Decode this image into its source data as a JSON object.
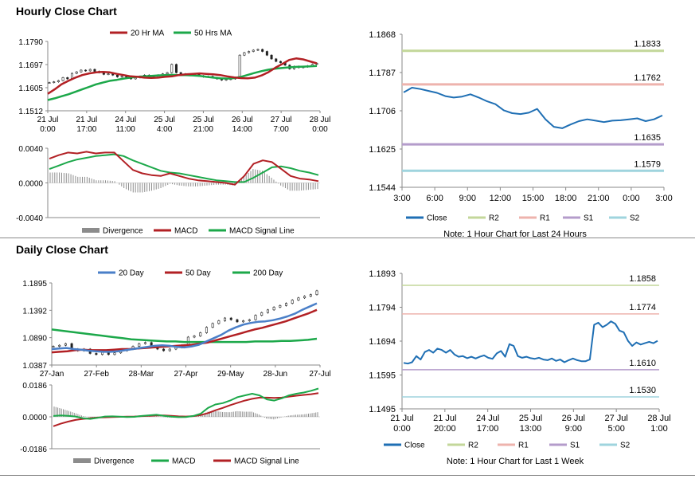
{
  "sections": {
    "hourly_title": "Hourly Close Chart",
    "daily_title": "Daily Close Chart"
  },
  "colors": {
    "red": "#b22024",
    "green": "#1ca84a",
    "blue": "#4a7fc8",
    "close_blue": "#1f6fb4",
    "gray": "#8c8c8c",
    "r2": "#c3d79a",
    "r1": "#eeb3ad",
    "s1": "#b49ccb",
    "s2": "#9fd4de"
  },
  "chart_data": [
    {
      "id": "hourly_price",
      "type": "line",
      "subtype": "candlestick-with-moving-averages",
      "title": "",
      "legend": [
        "20 Hr MA",
        "50 Hrs MA"
      ],
      "x_ticks": [
        [
          "21 Jul",
          "0:00"
        ],
        [
          "21 Jul",
          "17:00"
        ],
        [
          "24 Jul",
          "11:00"
        ],
        [
          "25 Jul",
          "4:00"
        ],
        [
          "25 Jul",
          "21:00"
        ],
        [
          "26 Jul",
          "14:00"
        ],
        [
          "27 Jul",
          "7:00"
        ],
        [
          "28 Jul",
          "0:00"
        ]
      ],
      "y_ticks": [
        "1.1790",
        "1.1697",
        "1.1605",
        "1.1512"
      ],
      "ylim": [
        1.1512,
        1.179
      ],
      "series": [
        {
          "name": "Price",
          "values": [
            1.1625,
            1.1628,
            1.1633,
            1.1645,
            1.164,
            1.1662,
            1.1668,
            1.1675,
            1.1672,
            1.1678,
            1.167,
            1.1665,
            1.1658,
            1.166,
            1.1655,
            1.1648,
            1.165,
            1.1645,
            1.164,
            1.1645,
            1.165,
            1.1655,
            1.1648,
            1.1645,
            1.1655,
            1.166,
            1.1665,
            1.1698,
            1.1665,
            1.166,
            1.1655,
            1.1655,
            1.1658,
            1.1652,
            1.1648,
            1.165,
            1.1645,
            1.164,
            1.1635,
            1.1638,
            1.164,
            1.1645,
            1.1735,
            1.1745,
            1.175,
            1.1755,
            1.1758,
            1.175,
            1.1735,
            1.172,
            1.171,
            1.1705,
            1.1695,
            1.168,
            1.169,
            1.1685,
            1.1688,
            1.1692,
            1.1698,
            1.1702
          ]
        },
        {
          "name": "20 Hr MA",
          "values": [
            1.158,
            1.1598,
            1.1618,
            1.1632,
            1.1645,
            1.1655,
            1.1662,
            1.1666,
            1.1668,
            1.1666,
            1.166,
            1.1655,
            1.165,
            1.1648,
            1.1645,
            1.1644,
            1.1645,
            1.1648,
            1.165,
            1.1655,
            1.1658,
            1.166,
            1.1662,
            1.166,
            1.1658,
            1.1655,
            1.165,
            1.1646,
            1.1643,
            1.1642,
            1.1645,
            1.1654,
            1.1667,
            1.1685,
            1.17,
            1.1716,
            1.1722,
            1.1718,
            1.171,
            1.1702
          ]
        },
        {
          "name": "50 Hrs MA",
          "values": [
            1.1555,
            1.1562,
            1.157,
            1.1578,
            1.1588,
            1.1598,
            1.1608,
            1.1618,
            1.1625,
            1.1632,
            1.1636,
            1.1641,
            1.1645,
            1.1648,
            1.165,
            1.1652,
            1.1654,
            1.1655,
            1.1656,
            1.1655,
            1.1655,
            1.1654,
            1.1652,
            1.1648,
            1.1645,
            1.1642,
            1.1641,
            1.1643,
            1.1648,
            1.1656,
            1.1664,
            1.1671,
            1.1677,
            1.1681,
            1.1684,
            1.1686,
            1.1688,
            1.1689,
            1.169,
            1.1692
          ]
        }
      ]
    },
    {
      "id": "hourly_macd",
      "type": "line",
      "subtype": "macd",
      "title": "",
      "legend": [
        "Divergence",
        "MACD",
        "MACD Signal Line"
      ],
      "y_ticks": [
        "0.0040",
        "0.0000",
        "-0.0040"
      ],
      "ylim": [
        -0.004,
        0.004
      ],
      "series": [
        {
          "name": "MACD",
          "values": [
            0.0028,
            0.0032,
            0.0035,
            0.0034,
            0.0036,
            0.0034,
            0.0035,
            0.0035,
            0.0025,
            0.0015,
            0.0011,
            0.0009,
            0.0008,
            0.0011,
            0.0008,
            0.0005,
            0.0003,
            0.0002,
            0.0001,
            0.0,
            -0.0002,
            0.0008,
            0.0022,
            0.0026,
            0.0024,
            0.0016,
            0.0008,
            0.0005,
            0.0004,
            0.0002
          ]
        },
        {
          "name": "MACD Signal Line",
          "values": [
            0.0016,
            0.002,
            0.0024,
            0.0027,
            0.0029,
            0.0031,
            0.0032,
            0.0033,
            0.0031,
            0.0026,
            0.0022,
            0.0018,
            0.0014,
            0.0012,
            0.0011,
            0.0009,
            0.0007,
            0.0005,
            0.0003,
            0.0002,
            0.0001,
            0.0001,
            0.0006,
            0.0012,
            0.0018,
            0.0019,
            0.0017,
            0.0014,
            0.0012,
            0.0009
          ]
        },
        {
          "name": "Divergence",
          "values": [
            0.0012,
            0.0012,
            0.0011,
            0.0007,
            0.0007,
            0.0003,
            0.0003,
            0.0002,
            -0.0006,
            -0.0011,
            -0.0011,
            -0.0009,
            -0.0006,
            -0.0001,
            -0.0003,
            -0.0004,
            -0.0004,
            -0.0003,
            -0.0002,
            -0.0002,
            -0.0003,
            0.0007,
            0.0016,
            0.0014,
            0.0006,
            -0.0003,
            -0.0009,
            -0.0009,
            -0.0008,
            -0.0007
          ]
        }
      ]
    },
    {
      "id": "hourly_levels",
      "type": "line",
      "title": "",
      "note": "Note: 1 Hour Chart for Last 24 Hours",
      "x_ticks": [
        "3:00",
        "6:00",
        "9:00",
        "12:00",
        "15:00",
        "18:00",
        "21:00",
        "0:00",
        "3:00"
      ],
      "y_ticks": [
        "1.1868",
        "1.1787",
        "1.1706",
        "1.1625",
        "1.1544"
      ],
      "ylim": [
        1.1544,
        1.1868
      ],
      "legend": [
        "Close",
        "R2",
        "R1",
        "S1",
        "S2"
      ],
      "levels": [
        {
          "name": "R2",
          "value": 1.1833,
          "label": "1.1833"
        },
        {
          "name": "R1",
          "value": 1.1762,
          "label": "1.1762"
        },
        {
          "name": "S1",
          "value": 1.1635,
          "label": "1.1635"
        },
        {
          "name": "S2",
          "value": 1.1579,
          "label": "1.1579"
        }
      ],
      "series": [
        {
          "name": "Close",
          "values": [
            1.1745,
            1.1755,
            1.1752,
            1.1748,
            1.1744,
            1.1737,
            1.1734,
            1.1736,
            1.1741,
            1.1734,
            1.1726,
            1.172,
            1.1707,
            1.1701,
            1.1699,
            1.1702,
            1.171,
            1.1688,
            1.1672,
            1.1669,
            1.1677,
            1.1684,
            1.1688,
            1.1685,
            1.1682,
            1.1685,
            1.1686,
            1.1688,
            1.169,
            1.1684,
            1.1688,
            1.1696
          ]
        }
      ]
    },
    {
      "id": "daily_price",
      "type": "line",
      "subtype": "candlestick-with-moving-averages",
      "title": "",
      "legend": [
        "20 Day",
        "50 Day",
        "200 Day"
      ],
      "x_ticks": [
        "27-Jan",
        "27-Feb",
        "28-Mar",
        "27-Apr",
        "29-May",
        "28-Jun",
        "27-Jul"
      ],
      "y_ticks": [
        "1.1895",
        "1.1392",
        "1.0890",
        "1.0387"
      ],
      "ylim": [
        1.0387,
        1.1895
      ],
      "series": [
        {
          "name": "Price",
          "values": [
            1.073,
            1.075,
            1.078,
            1.068,
            1.065,
            1.068,
            1.06,
            1.058,
            1.062,
            1.058,
            1.061,
            1.065,
            1.068,
            1.073,
            1.078,
            1.08,
            1.072,
            1.068,
            1.065,
            1.068,
            1.071,
            1.075,
            1.09,
            1.092,
            1.098,
            1.108,
            1.115,
            1.12,
            1.125,
            1.122,
            1.118,
            1.12,
            1.122,
            1.13,
            1.135,
            1.14,
            1.145,
            1.148,
            1.152,
            1.158,
            1.162,
            1.165,
            1.168,
            1.175
          ]
        },
        {
          "name": "20 Day",
          "values": [
            1.068,
            1.069,
            1.07,
            1.068,
            1.067,
            1.065,
            1.064,
            1.063,
            1.063,
            1.064,
            1.066,
            1.068,
            1.07,
            1.072,
            1.074,
            1.075,
            1.074,
            1.072,
            1.071,
            1.073,
            1.076,
            1.082,
            1.088,
            1.094,
            1.102,
            1.108,
            1.113,
            1.116,
            1.118,
            1.119,
            1.121,
            1.124,
            1.128,
            1.133,
            1.14,
            1.146,
            1.152
          ]
        },
        {
          "name": "50 Day",
          "values": [
            1.062,
            1.063,
            1.064,
            1.066,
            1.067,
            1.066,
            1.066,
            1.066,
            1.067,
            1.068,
            1.068,
            1.069,
            1.07,
            1.071,
            1.072,
            1.073,
            1.074,
            1.075,
            1.076,
            1.078,
            1.08,
            1.084,
            1.088,
            1.092,
            1.096,
            1.1,
            1.104,
            1.107,
            1.111,
            1.115,
            1.119,
            1.124,
            1.129,
            1.134,
            1.14
          ]
        },
        {
          "name": "200 Day",
          "values": [
            1.104,
            1.102,
            1.1,
            1.098,
            1.096,
            1.094,
            1.092,
            1.09,
            1.088,
            1.086,
            1.085,
            1.084,
            1.083,
            1.082,
            1.082,
            1.081,
            1.081,
            1.081,
            1.081,
            1.081,
            1.081,
            1.081,
            1.081,
            1.082,
            1.082,
            1.082,
            1.083,
            1.083,
            1.084,
            1.085,
            1.087
          ]
        }
      ]
    },
    {
      "id": "daily_macd",
      "type": "line",
      "subtype": "macd",
      "title": "",
      "legend": [
        "Divergence",
        "MACD",
        "MACD Signal Line"
      ],
      "y_ticks": [
        "0.0186",
        "0.0000",
        "-0.0186"
      ],
      "ylim": [
        -0.0186,
        0.0186
      ],
      "series": [
        {
          "name": "MACD",
          "values": [
            0.0005,
            0.0008,
            0.0006,
            0.0002,
            -0.0008,
            -0.0012,
            -0.0006,
            0.0002,
            0.0003,
            0.0001,
            -0.0001,
            0.0,
            0.0005,
            0.0009,
            0.0012,
            0.0006,
            0.0001,
            -0.0002,
            -0.0001,
            0.0005,
            0.0018,
            0.0052,
            0.0072,
            0.008,
            0.0095,
            0.0115,
            0.0125,
            0.0135,
            0.0125,
            0.0102,
            0.0095,
            0.0108,
            0.0125,
            0.0135,
            0.0142,
            0.0152,
            0.0165
          ]
        },
        {
          "name": "MACD Signal Line",
          "values": [
            -0.0055,
            -0.004,
            -0.0028,
            -0.0018,
            -0.0012,
            -0.0008,
            -0.0004,
            -0.0003,
            -0.0001,
            0.0,
            0.0001,
            0.0002,
            0.0004,
            0.0006,
            0.0008,
            0.0008,
            0.0006,
            0.0003,
            0.0002,
            0.0004,
            0.001,
            0.0022,
            0.0038,
            0.0052,
            0.0068,
            0.0082,
            0.0095,
            0.0105,
            0.0112,
            0.0112,
            0.011,
            0.0112,
            0.0118,
            0.0123,
            0.0128,
            0.0132,
            0.0138
          ]
        },
        {
          "name": "Divergence",
          "values": [
            0.006,
            0.0048,
            0.0034,
            0.002,
            0.0004,
            -0.0004,
            -0.0002,
            0.0005,
            0.0004,
            0.0001,
            -0.0002,
            -0.0002,
            0.0001,
            0.0003,
            0.0004,
            -0.0002,
            -0.0005,
            -0.0005,
            -0.0003,
            0.0001,
            0.0008,
            0.003,
            0.0034,
            0.0028,
            0.0027,
            0.0033,
            0.003,
            0.003,
            0.0013,
            -0.001,
            -0.0015,
            -0.0004,
            0.0007,
            0.0012,
            0.0014,
            0.002,
            0.0027
          ]
        }
      ]
    },
    {
      "id": "daily_levels",
      "type": "line",
      "title": "",
      "note": "Note: 1 Hour Chart for Last 1 Week",
      "x_ticks": [
        [
          "21 Jul",
          "0:00"
        ],
        [
          "21 Jul",
          "20:00"
        ],
        [
          "24 Jul",
          "17:00"
        ],
        [
          "25 Jul",
          "13:00"
        ],
        [
          "26 Jul",
          "9:00"
        ],
        [
          "27 Jul",
          "5:00"
        ],
        [
          "28 Jul",
          "1:00"
        ]
      ],
      "y_ticks": [
        "1.1893",
        "1.1794",
        "1.1694",
        "1.1595",
        "1.1495"
      ],
      "ylim": [
        1.1495,
        1.1893
      ],
      "legend": [
        "Close",
        "R2",
        "R1",
        "S1",
        "S2"
      ],
      "levels": [
        {
          "name": "R2",
          "value": 1.1858,
          "label": "1.1858"
        },
        {
          "name": "R1",
          "value": 1.1774,
          "label": "1.1774"
        },
        {
          "name": "S1",
          "value": 1.161,
          "label": "1.1610"
        },
        {
          "name": "S2",
          "value": 1.153,
          "label": "1.1530"
        }
      ],
      "series": [
        {
          "name": "Close",
          "values": [
            1.163,
            1.1628,
            1.1632,
            1.165,
            1.164,
            1.1662,
            1.1668,
            1.166,
            1.1672,
            1.1668,
            1.166,
            1.1668,
            1.1655,
            1.1648,
            1.165,
            1.1644,
            1.1648,
            1.1643,
            1.1648,
            1.1652,
            1.1645,
            1.1642,
            1.1658,
            1.1665,
            1.1648,
            1.1685,
            1.168,
            1.165,
            1.1645,
            1.1648,
            1.1644,
            1.1642,
            1.1645,
            1.164,
            1.1638,
            1.1643,
            1.1636,
            1.164,
            1.1632,
            1.1638,
            1.1643,
            1.1638,
            1.1635,
            1.1635,
            1.164,
            1.1742,
            1.1748,
            1.1735,
            1.1742,
            1.1752,
            1.1745,
            1.1725,
            1.172,
            1.1695,
            1.168,
            1.169,
            1.1684,
            1.1688,
            1.1692,
            1.1688,
            1.1695
          ]
        }
      ]
    }
  ]
}
